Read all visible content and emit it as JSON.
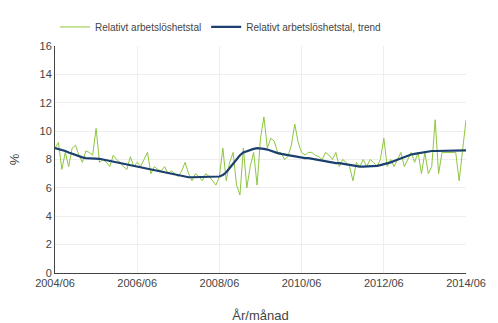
{
  "chart_data": {
    "type": "line",
    "xlabel": "År/månad",
    "ylabel": "%",
    "categories": [
      "2004/06",
      null,
      null,
      null,
      null,
      null,
      null,
      null,
      null,
      null,
      null,
      null,
      null,
      null,
      null,
      null,
      null,
      null,
      null,
      null,
      null,
      null,
      null,
      null,
      "2006/06",
      null,
      null,
      null,
      null,
      null,
      null,
      null,
      null,
      null,
      null,
      null,
      null,
      null,
      null,
      null,
      null,
      null,
      null,
      null,
      null,
      null,
      null,
      null,
      "2008/06",
      null,
      null,
      null,
      null,
      null,
      null,
      null,
      null,
      null,
      null,
      null,
      null,
      null,
      null,
      null,
      null,
      null,
      null,
      null,
      null,
      null,
      null,
      null,
      "2010/06",
      null,
      null,
      null,
      null,
      null,
      null,
      null,
      null,
      null,
      null,
      null,
      null,
      null,
      null,
      null,
      null,
      null,
      null,
      null,
      null,
      null,
      null,
      null,
      "2012/06",
      null,
      null,
      null,
      null,
      null,
      null,
      null,
      null,
      null,
      null,
      null,
      null,
      null,
      null,
      null,
      null,
      null,
      null,
      null,
      null,
      null,
      null,
      null,
      "2014/06"
    ],
    "series": [
      {
        "name": "Relativt arbetslöshetstal",
        "color": "#8dc63f",
        "values": [
          8.8,
          9.2,
          7.3,
          8.5,
          7.5,
          8.8,
          9.0,
          8.3,
          7.8,
          8.6,
          8.5,
          8.3,
          10.2,
          7.8,
          8.0,
          7.8,
          7.5,
          8.3,
          8.0,
          7.8,
          7.5,
          7.3,
          8.2,
          7.5,
          7.8,
          7.5,
          8.0,
          8.5,
          7.0,
          7.5,
          7.3,
          7.2,
          7.5,
          7.0,
          7.2,
          7.0,
          6.8,
          7.2,
          7.8,
          7.0,
          6.5,
          7.0,
          6.8,
          6.5,
          7.0,
          6.8,
          6.5,
          6.2,
          6.8,
          8.8,
          6.5,
          7.8,
          8.5,
          6.2,
          5.5,
          8.8,
          6.0,
          7.5,
          8.5,
          6.2,
          9.5,
          11.0,
          8.8,
          9.5,
          9.3,
          8.5,
          8.5,
          8.0,
          8.2,
          9.0,
          10.5,
          9.2,
          8.5,
          8.3,
          8.5,
          8.5,
          8.3,
          8.2,
          8.0,
          8.5,
          8.3,
          8.0,
          8.5,
          7.5,
          8.0,
          7.8,
          7.5,
          6.5,
          7.8,
          7.5,
          8.0,
          7.5,
          8.0,
          7.8,
          7.5,
          8.0,
          9.5,
          7.5,
          8.0,
          7.5,
          8.0,
          8.5,
          7.5,
          8.0,
          8.5,
          7.8,
          8.5,
          7.0,
          8.5,
          7.0,
          7.5,
          10.8,
          7.0,
          8.5,
          8.5,
          8.5,
          8.5,
          8.5,
          6.5,
          8.8,
          10.8
        ]
      },
      {
        "name": "Relativt arbetslöshetstal, trend",
        "color": "#1b3f6e",
        "values": [
          8.8,
          8.75,
          8.7,
          8.6,
          8.5,
          8.4,
          8.3,
          8.2,
          8.15,
          8.1,
          8.1,
          8.1,
          8.1,
          8.05,
          8.0,
          7.95,
          7.9,
          7.85,
          7.8,
          7.75,
          7.7,
          7.65,
          7.6,
          7.55,
          7.5,
          7.4,
          7.35,
          7.3,
          7.25,
          7.2,
          7.15,
          7.1,
          7.05,
          7.0,
          6.95,
          6.9,
          6.85,
          6.8,
          6.75,
          6.75,
          6.75,
          6.75,
          6.75,
          6.75,
          6.75,
          6.75,
          6.75,
          6.75,
          6.8,
          6.9,
          7.1,
          7.4,
          7.7,
          8.0,
          8.3,
          8.5,
          8.6,
          8.7,
          8.75,
          8.8,
          8.8,
          8.75,
          8.7,
          8.6,
          8.5,
          8.45,
          8.4,
          8.35,
          8.3,
          8.25,
          8.2,
          8.15,
          8.1,
          8.1,
          8.1,
          8.05,
          8.0,
          7.95,
          7.9,
          7.85,
          7.8,
          7.75,
          7.75,
          7.75,
          7.7,
          7.65,
          7.6,
          7.55,
          7.5,
          7.5,
          7.5,
          7.5,
          7.5,
          7.5,
          7.55,
          7.6,
          7.65,
          7.7,
          7.8,
          7.9,
          8.0,
          8.1,
          8.2,
          8.3,
          8.35,
          8.4,
          8.45,
          8.5,
          8.55,
          8.6,
          8.6,
          8.6,
          8.6,
          8.6,
          8.62,
          8.64,
          8.65,
          8.65,
          8.65,
          8.65,
          8.65
        ]
      }
    ],
    "ylim": [
      0,
      16
    ],
    "yticks": [
      0,
      2,
      4,
      6,
      8,
      10,
      12,
      14,
      16
    ],
    "grid": true,
    "legend": "top left"
  }
}
